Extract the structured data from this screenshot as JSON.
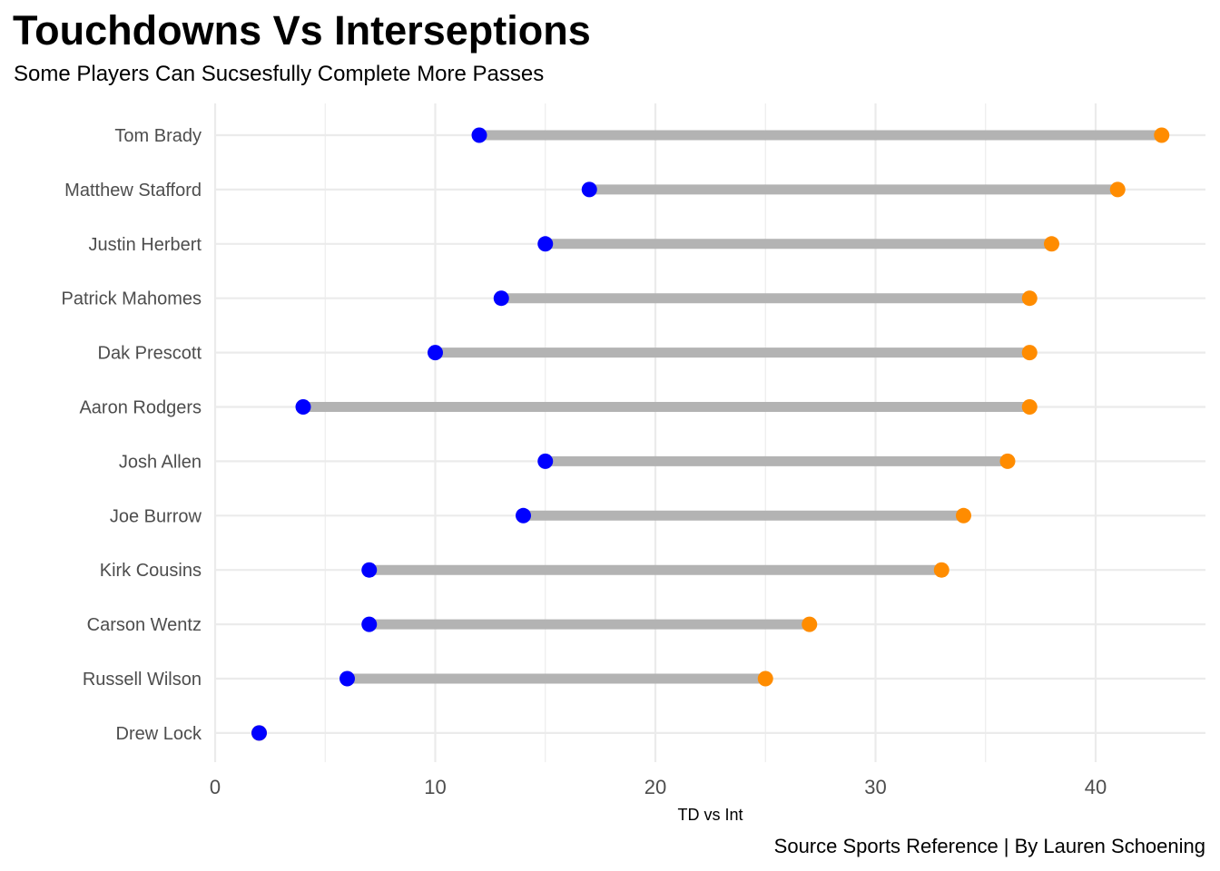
{
  "chart_data": {
    "type": "dumbbell",
    "title": "Touchdowns Vs Interseptions",
    "subtitle": "Some Players Can Sucsesfully Complete More Passes",
    "caption": "Source Sports Reference | By Lauren Schoening",
    "xlabel": "TD vs Int",
    "ylabel": "",
    "xlim": [
      0,
      45
    ],
    "xticks": [
      0,
      10,
      20,
      30,
      40
    ],
    "grid": true,
    "categories": [
      "Tom Brady",
      "Matthew Stafford",
      "Justin Herbert",
      "Patrick Mahomes",
      "Dak Prescott",
      "Aaron Rodgers",
      "Josh Allen",
      "Joe Burrow",
      "Kirk Cousins",
      "Carson Wentz",
      "Russell Wilson",
      "Drew Lock"
    ],
    "series": [
      {
        "name": "Interceptions",
        "color": "#0000ff",
        "values": [
          12,
          17,
          15,
          13,
          10,
          4,
          15,
          14,
          7,
          7,
          6,
          2
        ]
      },
      {
        "name": "Touchdowns",
        "color": "#ff8c00",
        "values": [
          43,
          41,
          38,
          37,
          37,
          37,
          36,
          34,
          33,
          27,
          25,
          2
        ]
      }
    ],
    "segment_color": "#b3b3b3",
    "gridline_color": "#ebebeb"
  }
}
